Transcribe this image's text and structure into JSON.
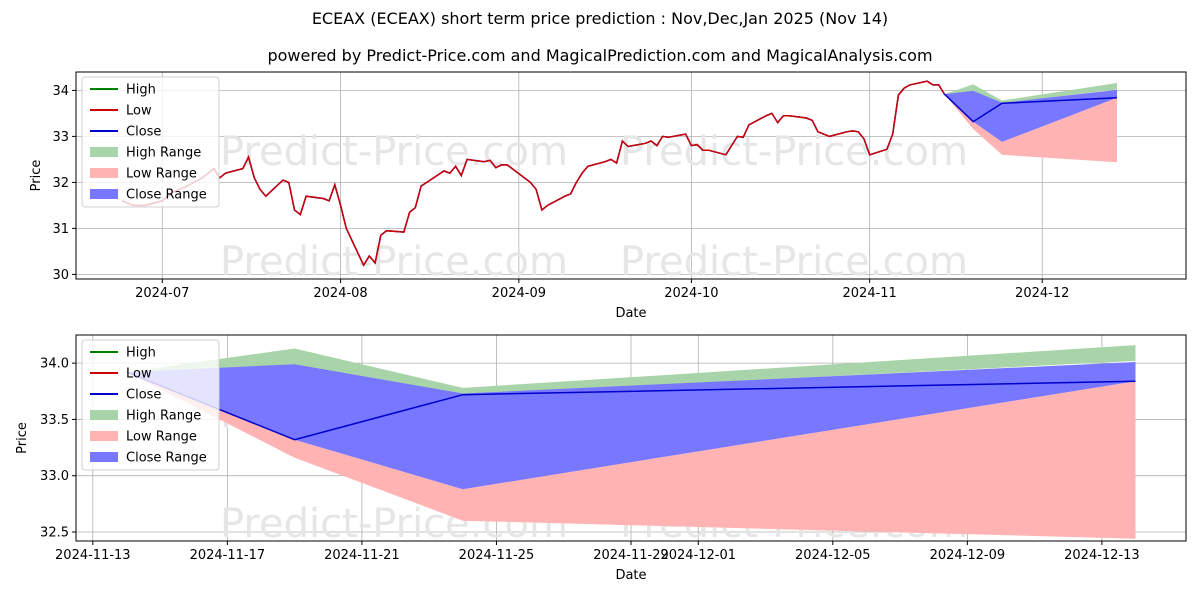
{
  "title": "ECEAX (ECEAX) short term price prediction : Nov,Dec,Jan 2025 (Nov 14)",
  "subtitle": "powered by Predict-Price.com and MagicalPrediction.com and MagicalAnalysis.com",
  "watermark": "Predict-Price.com",
  "colors": {
    "high": "#008000",
    "low": "#cc0000",
    "close": "#0000cc",
    "high_range": "#a9d4a9",
    "low_range": "#ffb3b3",
    "close_range": "#7777ff",
    "grid": "#b0b0b0",
    "watermark": "#e6e6e6"
  },
  "legend": {
    "placement": "top-left",
    "items": [
      {
        "label": "High",
        "kind": "line",
        "color_key": "high"
      },
      {
        "label": "Low",
        "kind": "line",
        "color_key": "low"
      },
      {
        "label": "Close",
        "kind": "line",
        "color_key": "close"
      },
      {
        "label": "High Range",
        "kind": "patch",
        "color_key": "high_range"
      },
      {
        "label": "Low Range",
        "kind": "patch",
        "color_key": "low_range"
      },
      {
        "label": "Close Range",
        "kind": "patch",
        "color_key": "close_range"
      }
    ]
  },
  "chart_data": [
    {
      "type": "line",
      "xlabel": "Date",
      "ylabel": "Price",
      "x_axis": "date",
      "xlim": [
        "2024-06-16",
        "2024-12-26"
      ],
      "ylim": [
        29.9,
        34.4
      ],
      "x_ticks": [
        {
          "date": "2024-07-01",
          "label": "2024-07"
        },
        {
          "date": "2024-08-01",
          "label": "2024-08"
        },
        {
          "date": "2024-09-01",
          "label": "2024-09"
        },
        {
          "date": "2024-10-01",
          "label": "2024-10"
        },
        {
          "date": "2024-11-01",
          "label": "2024-11"
        },
        {
          "date": "2024-12-01",
          "label": "2024-12"
        }
      ],
      "y_ticks": [
        30,
        31,
        32,
        33,
        34
      ],
      "grid": true,
      "history": {
        "x": [
          "2024-06-24",
          "2024-06-26",
          "2024-06-27",
          "2024-06-28",
          "2024-07-01",
          "2024-07-02",
          "2024-07-03",
          "2024-07-05",
          "2024-07-08",
          "2024-07-09",
          "2024-07-10",
          "2024-07-11",
          "2024-07-12",
          "2024-07-15",
          "2024-07-16",
          "2024-07-17",
          "2024-07-18",
          "2024-07-19",
          "2024-07-22",
          "2024-07-23",
          "2024-07-24",
          "2024-07-25",
          "2024-07-26",
          "2024-07-29",
          "2024-07-30",
          "2024-07-31",
          "2024-08-01",
          "2024-08-02",
          "2024-08-05",
          "2024-08-06",
          "2024-08-07",
          "2024-08-08",
          "2024-08-09",
          "2024-08-12",
          "2024-08-13",
          "2024-08-14",
          "2024-08-15",
          "2024-08-16",
          "2024-08-19",
          "2024-08-20",
          "2024-08-21",
          "2024-08-22",
          "2024-08-23",
          "2024-08-26",
          "2024-08-27",
          "2024-08-28",
          "2024-08-29",
          "2024-08-30",
          "2024-09-03",
          "2024-09-04",
          "2024-09-05",
          "2024-09-06",
          "2024-09-09",
          "2024-09-10",
          "2024-09-11",
          "2024-09-12",
          "2024-09-13",
          "2024-09-16",
          "2024-09-17",
          "2024-09-18",
          "2024-09-19",
          "2024-09-20",
          "2024-09-23",
          "2024-09-24",
          "2024-09-25",
          "2024-09-26",
          "2024-09-27",
          "2024-09-30",
          "2024-10-01",
          "2024-10-02",
          "2024-10-03",
          "2024-10-04",
          "2024-10-07",
          "2024-10-08",
          "2024-10-09",
          "2024-10-10",
          "2024-10-11",
          "2024-10-14",
          "2024-10-15",
          "2024-10-16",
          "2024-10-17",
          "2024-10-18",
          "2024-10-21",
          "2024-10-22",
          "2024-10-23",
          "2024-10-24",
          "2024-10-25",
          "2024-10-28",
          "2024-10-29",
          "2024-10-30",
          "2024-10-31",
          "2024-11-01",
          "2024-11-04",
          "2024-11-05",
          "2024-11-06",
          "2024-11-07",
          "2024-11-08",
          "2024-11-11",
          "2024-11-12",
          "2024-11-13",
          "2024-11-14"
        ],
        "low": [
          31.6,
          31.5,
          31.5,
          31.5,
          31.6,
          31.7,
          31.8,
          31.9,
          32.1,
          32.2,
          32.3,
          32.1,
          32.2,
          32.3,
          32.55,
          32.1,
          31.85,
          31.7,
          32.05,
          32.0,
          31.4,
          31.3,
          31.7,
          31.65,
          31.6,
          31.95,
          31.5,
          31.0,
          30.2,
          30.4,
          30.25,
          30.85,
          30.95,
          30.92,
          31.35,
          31.45,
          31.92,
          32.0,
          32.25,
          32.2,
          32.35,
          32.15,
          32.5,
          32.45,
          32.48,
          32.32,
          32.38,
          32.38,
          32.0,
          31.85,
          31.4,
          31.5,
          31.7,
          31.75,
          32.0,
          32.2,
          32.35,
          32.45,
          32.5,
          32.42,
          32.9,
          32.78,
          32.85,
          32.9,
          32.8,
          33.0,
          32.98,
          33.05,
          32.8,
          32.82,
          32.7,
          32.7,
          32.6,
          32.8,
          33.0,
          32.98,
          33.25,
          33.45,
          33.5,
          33.3,
          33.45,
          33.45,
          33.4,
          33.35,
          33.1,
          33.05,
          33.0,
          33.1,
          33.12,
          33.1,
          32.95,
          32.6,
          32.72,
          33.05,
          33.9,
          34.05,
          34.12,
          34.2,
          34.12,
          34.12,
          33.92
        ],
        "close": [
          31.6,
          31.5,
          31.5,
          31.5,
          31.6,
          31.7,
          31.8,
          31.9,
          32.1,
          32.2,
          32.3,
          32.1,
          32.2,
          32.3,
          32.55,
          32.1,
          31.85,
          31.7,
          32.05,
          32.0,
          31.4,
          31.3,
          31.7,
          31.65,
          31.6,
          31.95,
          31.5,
          31.0,
          30.2,
          30.4,
          30.25,
          30.85,
          30.95,
          30.92,
          31.35,
          31.45,
          31.92,
          32.0,
          32.25,
          32.2,
          32.35,
          32.15,
          32.5,
          32.45,
          32.48,
          32.32,
          32.38,
          32.38,
          32.0,
          31.85,
          31.4,
          31.5,
          31.7,
          31.75,
          32.0,
          32.2,
          32.35,
          32.45,
          32.5,
          32.42,
          32.9,
          32.78,
          32.85,
          32.9,
          32.8,
          33.0,
          32.98,
          33.05,
          32.8,
          32.82,
          32.7,
          32.7,
          32.6,
          32.8,
          33.0,
          32.98,
          33.25,
          33.45,
          33.5,
          33.3,
          33.45,
          33.45,
          33.4,
          33.35,
          33.1,
          33.05,
          33.0,
          33.1,
          33.12,
          33.1,
          32.95,
          32.6,
          32.72,
          33.05,
          33.9,
          34.05,
          34.12,
          34.2,
          34.12,
          34.12,
          33.92
        ]
      },
      "forecast": {
        "x": [
          "2024-11-14",
          "2024-11-19",
          "2024-11-24",
          "2024-12-14"
        ],
        "close": [
          33.92,
          33.32,
          33.72,
          33.84
        ],
        "high_range": {
          "upper": [
            33.92,
            34.13,
            33.78,
            34.16
          ],
          "lower": [
            33.92,
            33.98,
            33.72,
            34.02
          ]
        },
        "close_range": {
          "upper": [
            33.92,
            33.99,
            33.73,
            34.01
          ],
          "lower": [
            33.92,
            33.32,
            32.88,
            33.84
          ]
        },
        "low_range": {
          "upper": [
            33.92,
            33.32,
            32.88,
            33.84
          ],
          "lower": [
            33.92,
            33.16,
            32.6,
            32.44
          ]
        }
      }
    },
    {
      "type": "line",
      "xlabel": "Date",
      "ylabel": "Price",
      "x_axis": "date",
      "xlim": [
        "2024-11-12 12:00",
        "2024-12-15 12:00"
      ],
      "ylim": [
        32.42,
        34.25
      ],
      "x_ticks": [
        {
          "date": "2024-11-13",
          "label": "2024-11-13"
        },
        {
          "date": "2024-11-17",
          "label": "2024-11-17"
        },
        {
          "date": "2024-11-21",
          "label": "2024-11-21"
        },
        {
          "date": "2024-11-25",
          "label": "2024-11-25"
        },
        {
          "date": "2024-11-29",
          "label": "2024-11-29"
        },
        {
          "date": "2024-12-01",
          "label": "2024-12-01"
        },
        {
          "date": "2024-12-05",
          "label": "2024-12-05"
        },
        {
          "date": "2024-12-09",
          "label": "2024-12-09"
        },
        {
          "date": "2024-12-13",
          "label": "2024-12-13"
        }
      ],
      "y_ticks": [
        32.5,
        33.0,
        33.5,
        34.0
      ],
      "y_tick_labels": [
        "32.5",
        "33.0",
        "33.5",
        "34.0"
      ],
      "grid": true,
      "forecast": {
        "x": [
          "2024-11-14",
          "2024-11-19",
          "2024-11-24",
          "2024-12-14"
        ],
        "close": [
          33.92,
          33.32,
          33.72,
          33.84
        ],
        "high_range": {
          "upper": [
            33.92,
            34.13,
            33.78,
            34.16
          ],
          "lower": [
            33.92,
            33.98,
            33.72,
            34.02
          ]
        },
        "close_range": {
          "upper": [
            33.92,
            33.99,
            33.73,
            34.01
          ],
          "lower": [
            33.92,
            33.32,
            32.88,
            33.84
          ]
        },
        "low_range": {
          "upper": [
            33.92,
            33.32,
            32.88,
            33.84
          ],
          "lower": [
            33.92,
            33.16,
            32.6,
            32.44
          ]
        }
      }
    }
  ]
}
